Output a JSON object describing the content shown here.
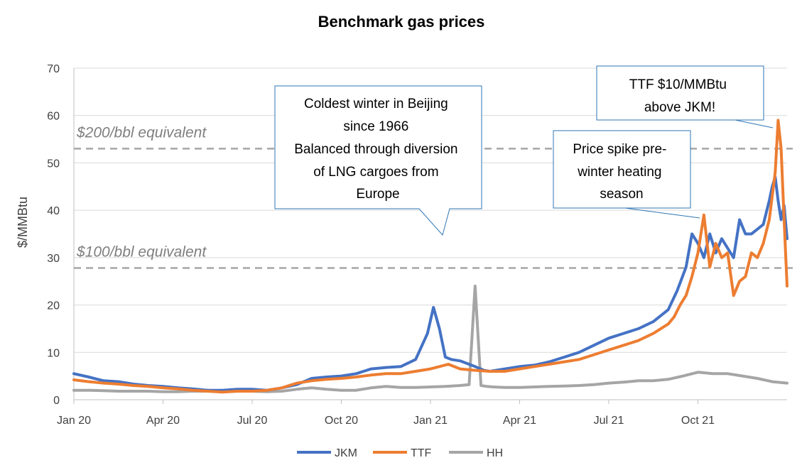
{
  "chart_data": {
    "type": "line",
    "title": "Benchmark gas prices",
    "xlabel": "",
    "ylabel": "$/MMBtu",
    "ylim": [
      0,
      70
    ],
    "yticks": [
      0,
      10,
      20,
      30,
      40,
      50,
      60,
      70
    ],
    "x_range_months": [
      0,
      24
    ],
    "xticks": [
      {
        "label": "Jan 20",
        "month": 0
      },
      {
        "label": "Apr 20",
        "month": 3
      },
      {
        "label": "Jul 20",
        "month": 6
      },
      {
        "label": "Oct 20",
        "month": 9
      },
      {
        "label": "Jan 21",
        "month": 12
      },
      {
        "label": "Apr 21",
        "month": 15
      },
      {
        "label": "Jul 21",
        "month": 18
      },
      {
        "label": "Oct 21",
        "month": 21
      }
    ],
    "grid": true,
    "legend_position": "bottom-center",
    "reference_lines": [
      {
        "label": "$200/bbl equivalent",
        "value": 53
      },
      {
        "label": "$100/bbl equivalent",
        "value": 27.8
      }
    ],
    "annotations": [
      {
        "lines": [
          "Coldest winter in Beijing",
          "since 1966",
          "Balanced through diversion",
          "of LNG cargoes from",
          "Europe"
        ],
        "pointer": [
          12.3,
          35
        ]
      },
      {
        "lines": [
          "Price spike pre-",
          "winter heating",
          "season"
        ],
        "pointer": [
          20.8,
          39
        ]
      },
      {
        "lines": [
          "TTF $10/MMBtu",
          "above JKM!"
        ],
        "pointer": [
          23.8,
          57
        ]
      }
    ],
    "series": [
      {
        "name": "JKM",
        "color": "#4472C4",
        "x": [
          0,
          0.5,
          1,
          1.5,
          2,
          2.5,
          3,
          3.5,
          4,
          4.5,
          5,
          5.5,
          6,
          6.5,
          7,
          7.5,
          8,
          8.5,
          9,
          9.5,
          10,
          10.5,
          11,
          11.5,
          11.9,
          12.1,
          12.3,
          12.5,
          12.7,
          13,
          13.5,
          13.8,
          14,
          14.5,
          15,
          15.5,
          16,
          16.5,
          17,
          17.5,
          18,
          18.5,
          19,
          19.5,
          20,
          20.3,
          20.6,
          20.8,
          21,
          21.2,
          21.4,
          21.6,
          21.8,
          22,
          22.2,
          22.4,
          22.6,
          22.8,
          23,
          23.2,
          23.4,
          23.5,
          23.6,
          23.7,
          23.8,
          23.9,
          24
        ],
        "values": [
          5.5,
          4.8,
          4.0,
          3.8,
          3.3,
          3.0,
          2.8,
          2.5,
          2.3,
          2.0,
          2.0,
          2.2,
          2.2,
          2.0,
          2.5,
          3.2,
          4.5,
          4.8,
          5.0,
          5.5,
          6.5,
          6.8,
          7.0,
          8.5,
          14,
          19.5,
          15,
          9.0,
          8.5,
          8.2,
          7.0,
          6.2,
          6.0,
          6.5,
          7.0,
          7.3,
          8.0,
          9.0,
          10.0,
          11.5,
          13.0,
          14.0,
          15.0,
          16.5,
          19.0,
          23.0,
          28.0,
          35.0,
          33.0,
          30.0,
          35.0,
          31.0,
          34.0,
          32.0,
          30.0,
          38.0,
          35.0,
          35.0,
          36.0,
          37.0,
          42.0,
          45.0,
          47.0,
          42.0,
          38.0,
          41.0,
          34.0
        ]
      },
      {
        "name": "TTF",
        "color": "#ED7D31",
        "x": [
          0,
          0.5,
          1,
          1.5,
          2,
          2.5,
          3,
          3.5,
          4,
          4.5,
          5,
          5.5,
          6,
          6.5,
          7,
          7.5,
          8,
          8.5,
          9,
          9.5,
          10,
          10.5,
          11,
          11.5,
          12,
          12.3,
          12.6,
          13,
          13.5,
          14,
          14.5,
          15,
          15.5,
          16,
          16.5,
          17,
          17.5,
          18,
          18.5,
          19,
          19.5,
          20,
          20.2,
          20.4,
          20.6,
          20.8,
          21,
          21.2,
          21.4,
          21.6,
          21.8,
          22,
          22.2,
          22.4,
          22.6,
          22.8,
          23,
          23.2,
          23.4,
          23.5,
          23.6,
          23.7,
          23.8,
          23.9,
          24
        ],
        "values": [
          4.2,
          3.8,
          3.5,
          3.3,
          3.0,
          2.8,
          2.5,
          2.3,
          2.0,
          1.8,
          1.6,
          1.8,
          1.8,
          2.0,
          2.5,
          3.5,
          4.0,
          4.3,
          4.5,
          4.8,
          5.2,
          5.5,
          5.5,
          6.0,
          6.5,
          7.0,
          7.5,
          6.5,
          6.2,
          6.0,
          6.0,
          6.5,
          7.0,
          7.5,
          8.0,
          8.5,
          9.5,
          10.5,
          11.5,
          12.5,
          14.0,
          16.0,
          17.5,
          20.0,
          22.0,
          26.0,
          31.0,
          39.0,
          28.0,
          33.0,
          30.0,
          31.0,
          22.0,
          25.0,
          26.0,
          31.0,
          30.0,
          33.0,
          38.0,
          43.0,
          48.0,
          59.0,
          53.0,
          38.0,
          24.0
        ]
      },
      {
        "name": "HH",
        "color": "#A5A5A5",
        "x": [
          0,
          0.5,
          1,
          1.5,
          2,
          2.5,
          3,
          3.5,
          4,
          4.5,
          5,
          5.5,
          6,
          6.5,
          7,
          7.5,
          8,
          8.5,
          9,
          9.5,
          10,
          10.5,
          11,
          11.5,
          12,
          12.5,
          13,
          13.3,
          13.5,
          13.7,
          13.9,
          14.1,
          14.5,
          15,
          15.5,
          16,
          16.5,
          17,
          17.5,
          18,
          18.5,
          19,
          19.5,
          20,
          20.5,
          21,
          21.5,
          22,
          22.5,
          23,
          23.5,
          24
        ],
        "values": [
          2.0,
          2.0,
          1.9,
          1.8,
          1.8,
          1.8,
          1.7,
          1.7,
          1.8,
          1.8,
          1.7,
          1.8,
          1.8,
          1.7,
          1.8,
          2.2,
          2.5,
          2.2,
          2.0,
          2.0,
          2.5,
          2.8,
          2.6,
          2.6,
          2.7,
          2.8,
          3.0,
          3.2,
          24.0,
          3.0,
          2.8,
          2.7,
          2.6,
          2.6,
          2.7,
          2.8,
          2.9,
          3.0,
          3.2,
          3.5,
          3.7,
          4.0,
          4.0,
          4.3,
          5.0,
          5.8,
          5.5,
          5.5,
          5.0,
          4.5,
          3.8,
          3.5
        ]
      }
    ]
  }
}
